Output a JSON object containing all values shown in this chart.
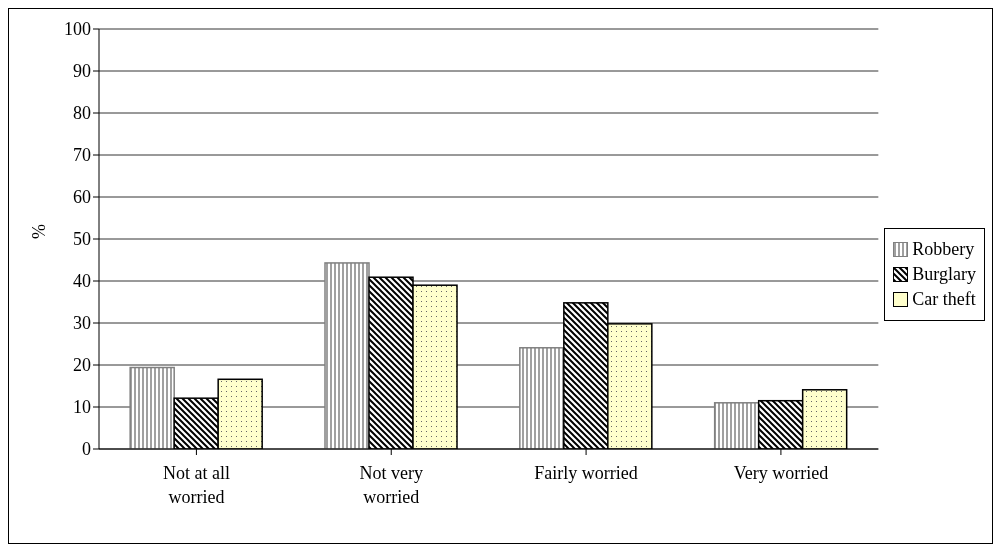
{
  "chart_data": {
    "type": "bar",
    "ylabel": "%",
    "categories": [
      "Not at all worried",
      "Not very worried",
      "Fairly worried",
      "Very worried"
    ],
    "series": [
      {
        "name": "Robbery",
        "color": "#808080",
        "values": [
          19.4,
          44.3,
          24.1,
          11.0
        ]
      },
      {
        "name": "Burglary",
        "color": "#000000",
        "values": [
          12.1,
          40.9,
          34.8,
          11.5
        ]
      },
      {
        "name": "Car theft",
        "color": "#ffffcc",
        "values": [
          16.6,
          39.0,
          29.8,
          14.1
        ]
      }
    ],
    "ylim": [
      0,
      100
    ],
    "yticks": [
      0,
      10,
      20,
      30,
      40,
      50,
      60,
      70,
      80,
      90,
      100
    ],
    "grid": "y",
    "legend": "right"
  }
}
